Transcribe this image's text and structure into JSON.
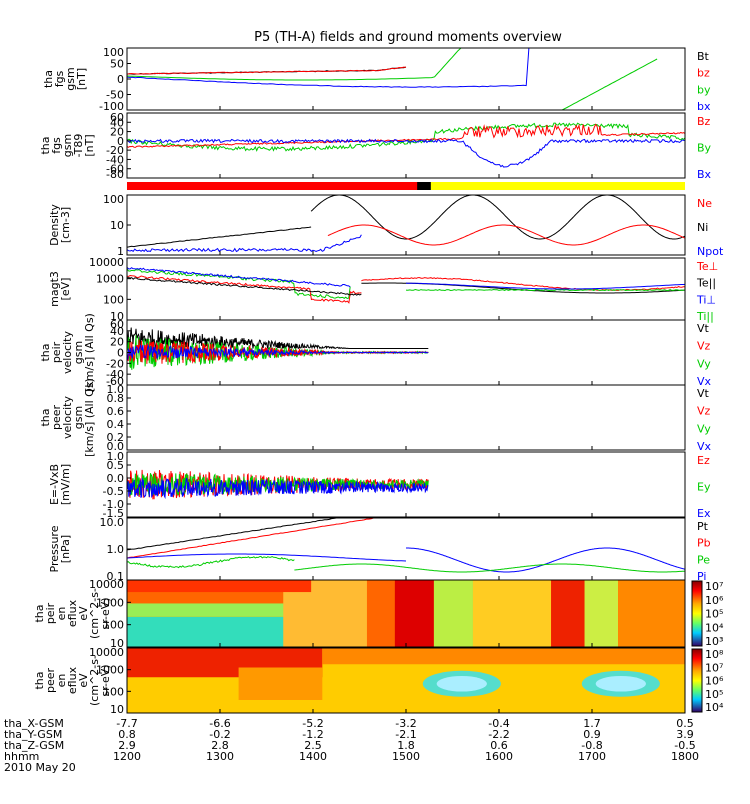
{
  "title": "P5 (TH-A) fields and ground moments overview",
  "colors": {
    "black": "#000000",
    "red": "#ff0000",
    "green": "#00cc00",
    "blue": "#0000ff",
    "yellow": "#ffff00"
  },
  "panels": [
    {
      "id": "fgs-gsm",
      "ylabel": [
        "tha",
        "fgs",
        "gsm",
        "[nT]"
      ],
      "yticks": [
        "100",
        "50",
        "0",
        "-50",
        "-100"
      ],
      "yrange": [
        -100,
        100
      ],
      "legend": [
        {
          "label": "Bt",
          "color": "#000000"
        },
        {
          "label": "bz",
          "color": "#ff0000"
        },
        {
          "label": "by",
          "color": "#00cc00"
        },
        {
          "label": "bx",
          "color": "#0000ff"
        }
      ]
    },
    {
      "id": "fgs-gsm-dt",
      "ylabel": [
        "tha",
        "fgs",
        "gsm",
        "-T89",
        "[nT]"
      ],
      "yticks": [
        "60",
        "40",
        "20",
        "0",
        "-20",
        "-40",
        "-60",
        "-80"
      ],
      "yrange": [
        -85,
        65
      ],
      "legend": [
        {
          "label": "Bz",
          "color": "#ff0000"
        },
        {
          "label": "By",
          "color": "#00cc00"
        },
        {
          "label": "Bx",
          "color": "#0000ff"
        }
      ]
    },
    {
      "id": "density",
      "ylabel": [
        "Density",
        "[cm-3]"
      ],
      "yticks": [
        "100",
        "10",
        "1"
      ],
      "yscale": "log",
      "legend": [
        {
          "label": "Ne",
          "color": "#ff0000"
        },
        {
          "label": "Ni",
          "color": "#000000"
        },
        {
          "label": "Npot",
          "color": "#0000ff"
        }
      ]
    },
    {
      "id": "temperature",
      "ylabel": [
        "magt3",
        "[eV]"
      ],
      "yticks": [
        "10000",
        "1000",
        "100",
        "10"
      ],
      "yscale": "log",
      "legend": [
        {
          "label": "Te⊥",
          "color": "#ff0000"
        },
        {
          "label": "Te||",
          "color": "#000000"
        },
        {
          "label": "Ti⊥",
          "color": "#0000ff"
        },
        {
          "label": "Ti||",
          "color": "#00cc00"
        }
      ]
    },
    {
      "id": "peir-velocity",
      "ylabel": [
        "tha",
        "peir",
        "velocity",
        "gsm",
        "[km/s] (All Qs)"
      ],
      "yticks": [
        "60",
        "40",
        "20",
        "0",
        "-20",
        "-40",
        "-60"
      ],
      "yrange": [
        -60,
        60
      ],
      "legend": [
        {
          "label": "Vt",
          "color": "#000000"
        },
        {
          "label": "Vz",
          "color": "#ff0000"
        },
        {
          "label": "Vy",
          "color": "#00cc00"
        },
        {
          "label": "Vx",
          "color": "#0000ff"
        }
      ]
    },
    {
      "id": "peer-velocity",
      "ylabel": [
        "tha",
        "peer",
        "velocity",
        "gsm",
        "[km/s] (All Qs)"
      ],
      "yticks": [
        "1.0",
        "0.8",
        "0.6",
        "0.4",
        "0.2",
        "0.0"
      ],
      "yrange": [
        0,
        1
      ],
      "legend": [
        {
          "label": "Vt",
          "color": "#000000"
        },
        {
          "label": "Vz",
          "color": "#ff0000"
        },
        {
          "label": "Vy",
          "color": "#00cc00"
        },
        {
          "label": "Vx",
          "color": "#0000ff"
        }
      ]
    },
    {
      "id": "e-field",
      "ylabel": [
        "E=-VxB",
        "[mV/m]"
      ],
      "yticks": [
        "1.0",
        "0.5",
        "0.0",
        "-0.5",
        "-1.0",
        "-1.5"
      ],
      "yrange": [
        -1.5,
        1.0
      ],
      "legend": [
        {
          "label": "Ez",
          "color": "#ff0000"
        },
        {
          "label": "Ey",
          "color": "#00cc00"
        },
        {
          "label": "Ex",
          "color": "#0000ff"
        }
      ]
    },
    {
      "id": "pressure",
      "ylabel": [
        "Pressure",
        "[nPa]"
      ],
      "yticks": [
        "10.0",
        "1.0",
        "0.1"
      ],
      "yscale": "log",
      "legend": [
        {
          "label": "Pt",
          "color": "#000000"
        },
        {
          "label": "Pb",
          "color": "#ff0000"
        },
        {
          "label": "Pe",
          "color": "#00cc00"
        },
        {
          "label": "Pi",
          "color": "#0000ff"
        }
      ]
    },
    {
      "id": "peir-eflux",
      "ylabel": [
        "tha",
        "peir",
        "en",
        "eflux",
        "eV",
        "(cm^2-s-",
        "sr-eV)"
      ],
      "yticks": [
        "10000",
        "1000",
        "100",
        "10"
      ],
      "yscale": "log",
      "colorbar": [
        "10⁷",
        "10⁶",
        "10⁵",
        "10⁴",
        "10³"
      ]
    },
    {
      "id": "peer-eflux",
      "ylabel": [
        "tha",
        "peer",
        "en",
        "eflux",
        "eV",
        "(cm^2-s-",
        "sr-eV)"
      ],
      "yticks": [
        "10000",
        "1000",
        "100",
        "10"
      ],
      "yscale": "log",
      "colorbar": [
        "10⁸",
        "10⁷",
        "10⁶",
        "10⁵",
        "10⁴"
      ]
    }
  ],
  "time_axis": {
    "rows": [
      {
        "label": "tha_X-GSM",
        "values": [
          "-7.7",
          "-6.6",
          "-5.2",
          "-3.2",
          "-0.4",
          "1.7",
          "0.5"
        ]
      },
      {
        "label": "tha_Y-GSM",
        "values": [
          "0.8",
          "-0.2",
          "-1.2",
          "-2.1",
          "-2.2",
          "0.9",
          "3.9"
        ]
      },
      {
        "label": "tha_Z-GSM",
        "values": [
          "2.9",
          "2.8",
          "2.5",
          "1.8",
          "0.6",
          "-0.8",
          "-0.5"
        ]
      },
      {
        "label": "hhmm",
        "values": [
          "1200",
          "1300",
          "1400",
          "1500",
          "1600",
          "1700",
          "1800"
        ]
      }
    ],
    "date": "2010 May 20"
  }
}
